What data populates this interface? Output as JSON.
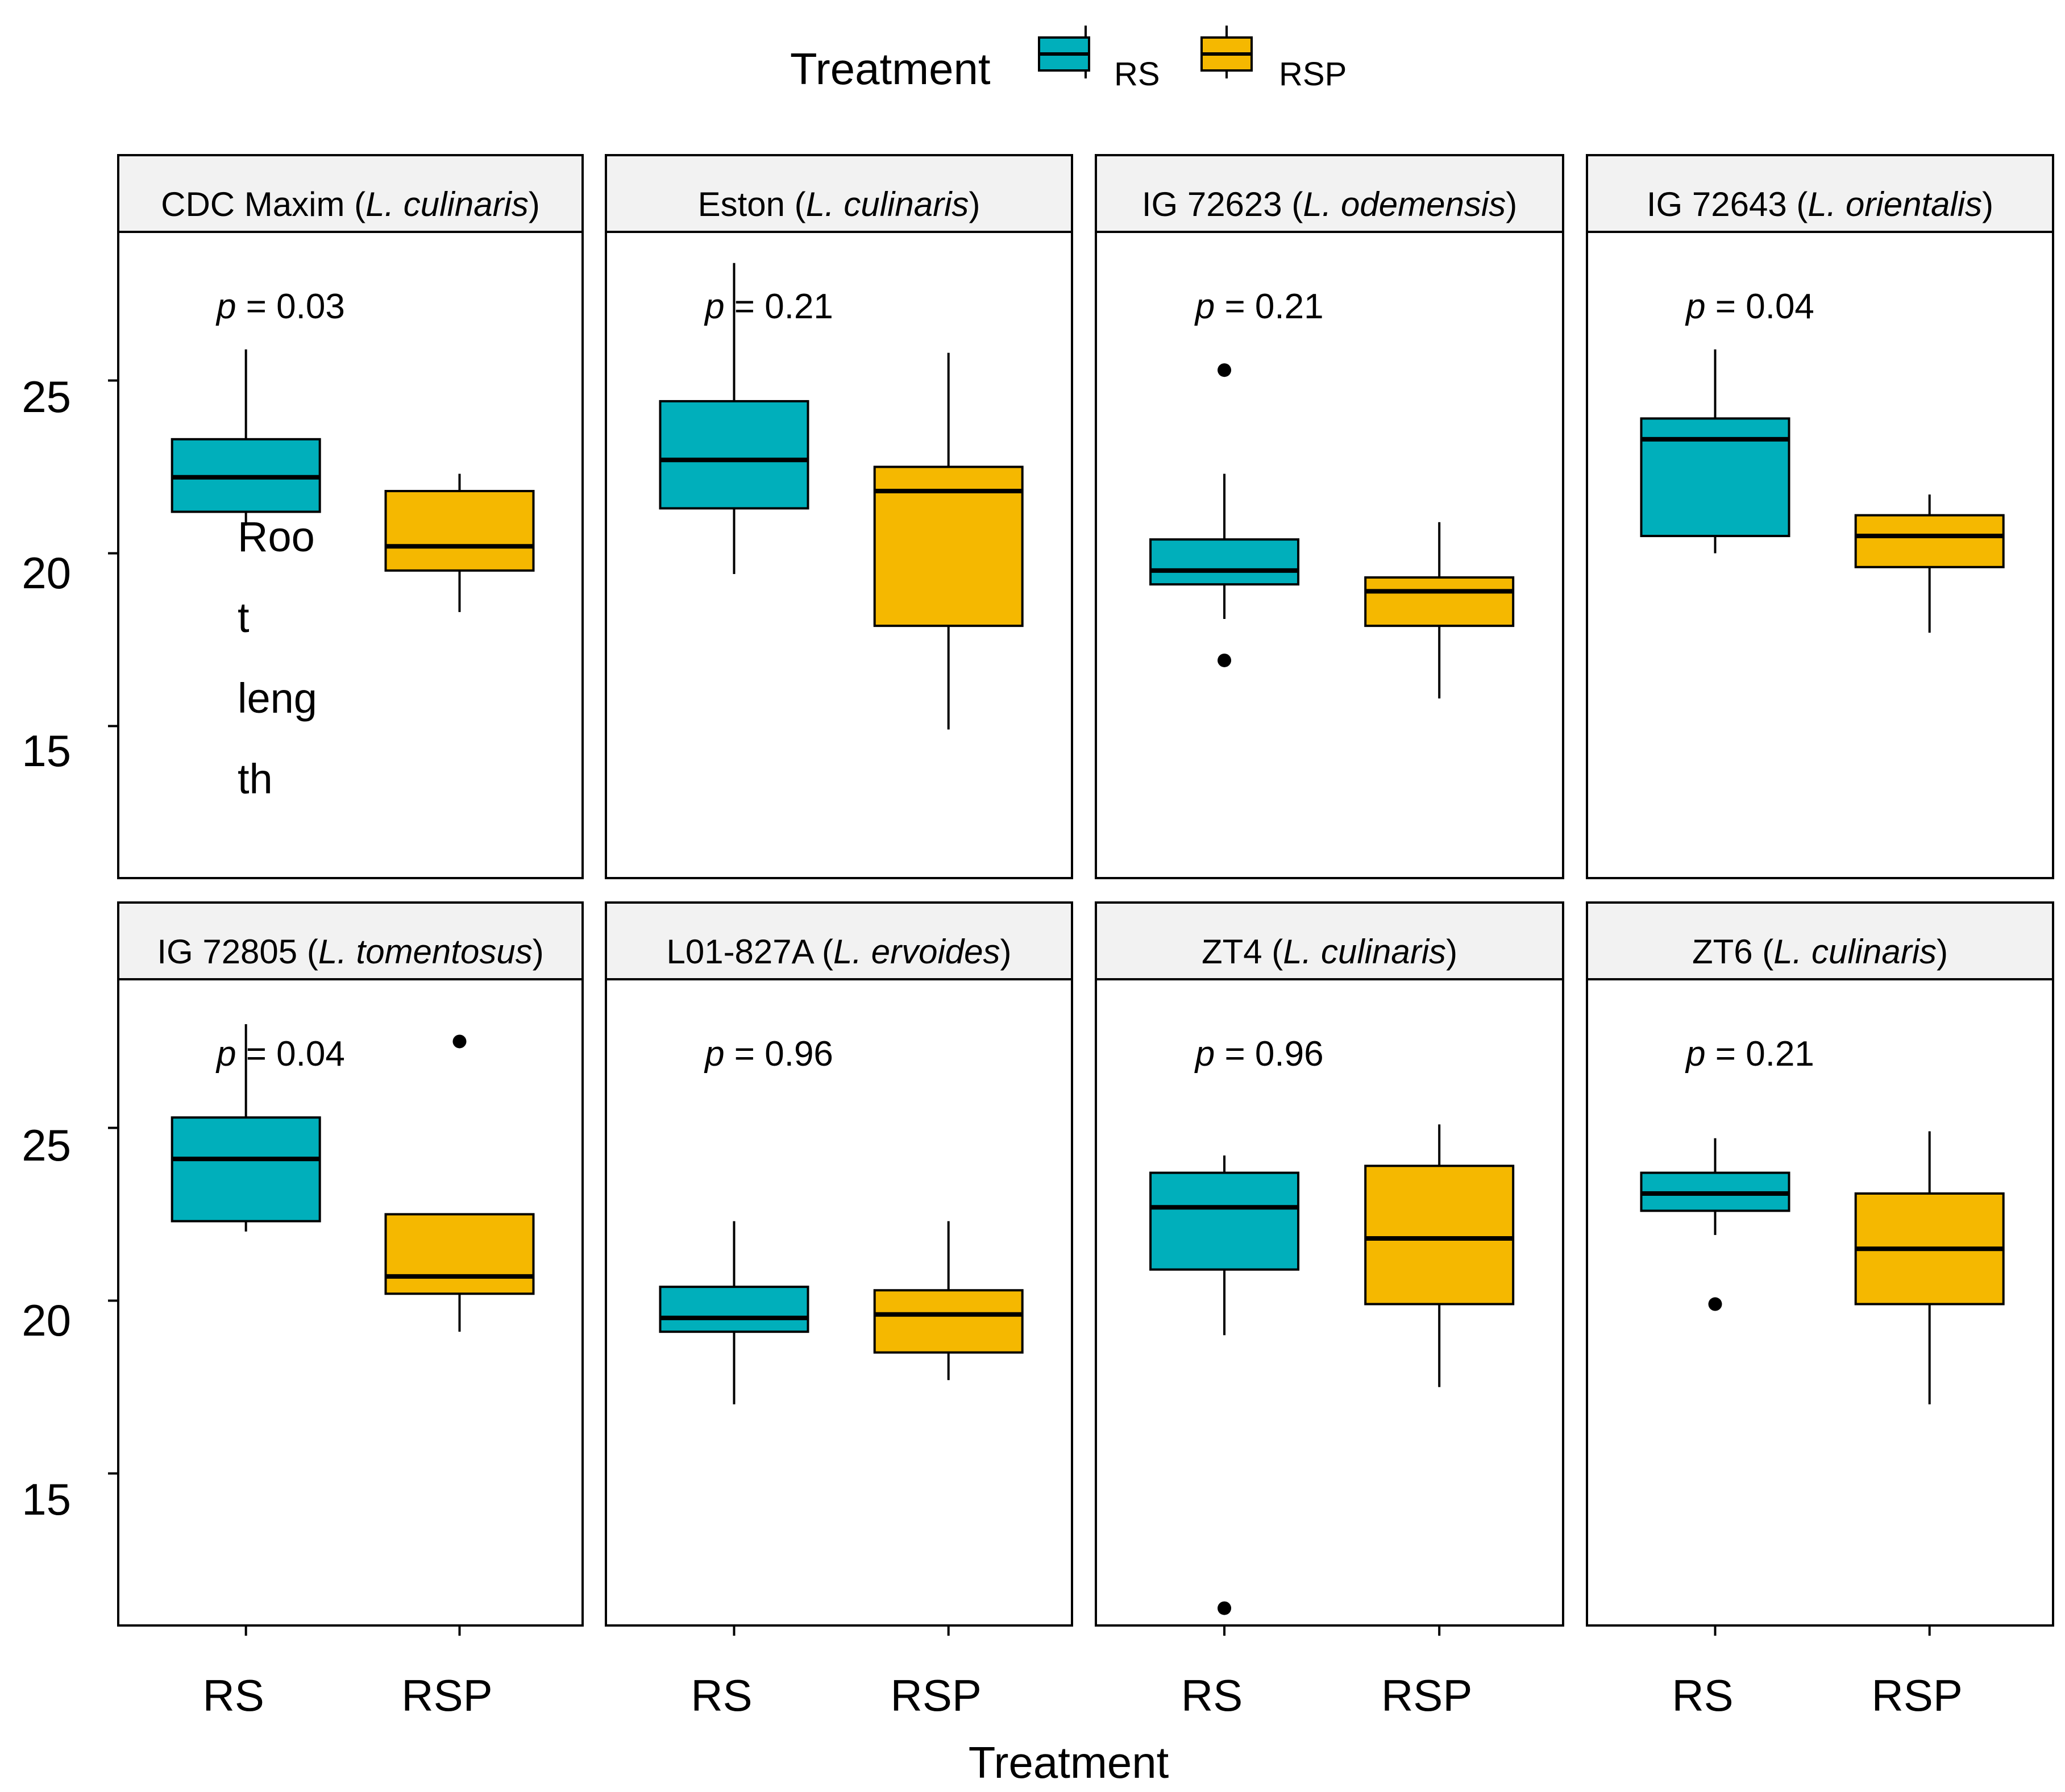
{
  "chart_data": {
    "type": "boxplot",
    "layout": "facet grid, 2 rows x 4 columns, shared axes",
    "xlabel": "Treatment",
    "ylabel": "Root length",
    "ylabel_display_lines": [
      "Roo",
      "t",
      "leng",
      "th"
    ],
    "ylim": [
      10.6,
      29.3
    ],
    "yticks": [
      15,
      20,
      25
    ],
    "categories": [
      "RS",
      "RSP"
    ],
    "legend": {
      "title": "Treatment",
      "position": "top",
      "entries": [
        {
          "label": "RS",
          "color": "#00AFBB"
        },
        {
          "label": "RSP",
          "color": "#F5B800"
        }
      ]
    },
    "panels": [
      {
        "strip": {
          "prefix": "CDC Maxim (",
          "species": "L. culinaris",
          "suffix": ")"
        },
        "pvalue": "0.03",
        "boxes": [
          {
            "group": "RS",
            "min": 20.8,
            "q1": 21.2,
            "median": 22.2,
            "q3": 23.3,
            "max": 25.9,
            "outliers": []
          },
          {
            "group": "RSP",
            "min": 18.3,
            "q1": 19.5,
            "median": 20.2,
            "q3": 21.8,
            "max": 22.3,
            "outliers": []
          }
        ]
      },
      {
        "strip": {
          "prefix": "Eston (",
          "species": "L. culinaris",
          "suffix": ")"
        },
        "pvalue": "0.21",
        "boxes": [
          {
            "group": "RS",
            "min": 19.4,
            "q1": 21.3,
            "median": 22.7,
            "q3": 24.4,
            "max": 28.4,
            "outliers": []
          },
          {
            "group": "RSP",
            "min": 14.9,
            "q1": 17.9,
            "median": 21.8,
            "q3": 22.5,
            "max": 25.8,
            "outliers": []
          }
        ]
      },
      {
        "strip": {
          "prefix": "IG 72623 (",
          "species": "L. odemensis",
          "suffix": ")"
        },
        "pvalue": "0.21",
        "boxes": [
          {
            "group": "RS",
            "min": 18.1,
            "q1": 19.1,
            "median": 19.5,
            "q3": 20.4,
            "max": 22.3,
            "outliers": [
              25.3,
              16.9
            ]
          },
          {
            "group": "RSP",
            "min": 15.8,
            "q1": 17.9,
            "median": 18.9,
            "q3": 19.3,
            "max": 20.9,
            "outliers": []
          }
        ]
      },
      {
        "strip": {
          "prefix": "IG 72643 (",
          "species": "L. orientalis",
          "suffix": ")"
        },
        "pvalue": "0.04",
        "boxes": [
          {
            "group": "RS",
            "min": 20.0,
            "q1": 20.5,
            "median": 23.3,
            "q3": 23.9,
            "max": 25.9,
            "outliers": []
          },
          {
            "group": "RSP",
            "min": 17.7,
            "q1": 19.6,
            "median": 20.5,
            "q3": 21.1,
            "max": 21.7,
            "outliers": []
          }
        ]
      },
      {
        "strip": {
          "prefix": "IG 72805 (",
          "species": "L. tomentosus",
          "suffix": ")"
        },
        "pvalue": "0.04",
        "boxes": [
          {
            "group": "RS",
            "min": 22.0,
            "q1": 22.3,
            "median": 24.1,
            "q3": 25.3,
            "max": 28.0,
            "outliers": []
          },
          {
            "group": "RSP",
            "min": 19.1,
            "q1": 20.2,
            "median": 20.7,
            "q3": 22.5,
            "max": 22.5,
            "outliers": [
              27.5
            ]
          }
        ]
      },
      {
        "strip": {
          "prefix": "L01-827A (",
          "species": "L. ervoides",
          "suffix": ")"
        },
        "pvalue": "0.96",
        "boxes": [
          {
            "group": "RS",
            "min": 17.0,
            "q1": 19.1,
            "median": 19.5,
            "q3": 20.4,
            "max": 22.3,
            "outliers": []
          },
          {
            "group": "RSP",
            "min": 17.7,
            "q1": 18.5,
            "median": 19.6,
            "q3": 20.3,
            "max": 22.3,
            "outliers": []
          }
        ]
      },
      {
        "strip": {
          "prefix": "ZT4 (",
          "species": "L. culinaris",
          "suffix": ")"
        },
        "pvalue": "0.96",
        "boxes": [
          {
            "group": "RS",
            "min": 19.0,
            "q1": 20.9,
            "median": 22.7,
            "q3": 23.7,
            "max": 24.2,
            "outliers": [
              11.1
            ]
          },
          {
            "group": "RSP",
            "min": 17.5,
            "q1": 19.9,
            "median": 21.8,
            "q3": 23.9,
            "max": 25.1,
            "outliers": []
          }
        ]
      },
      {
        "strip": {
          "prefix": "ZT6 (",
          "species": "L. culinaris",
          "suffix": ")"
        },
        "pvalue": "0.21",
        "boxes": [
          {
            "group": "RS",
            "min": 21.9,
            "q1": 22.6,
            "median": 23.1,
            "q3": 23.7,
            "max": 24.7,
            "outliers": [
              19.9
            ]
          },
          {
            "group": "RSP",
            "min": 17.0,
            "q1": 19.9,
            "median": 21.5,
            "q3": 23.1,
            "max": 24.9,
            "outliers": []
          }
        ]
      }
    ]
  }
}
